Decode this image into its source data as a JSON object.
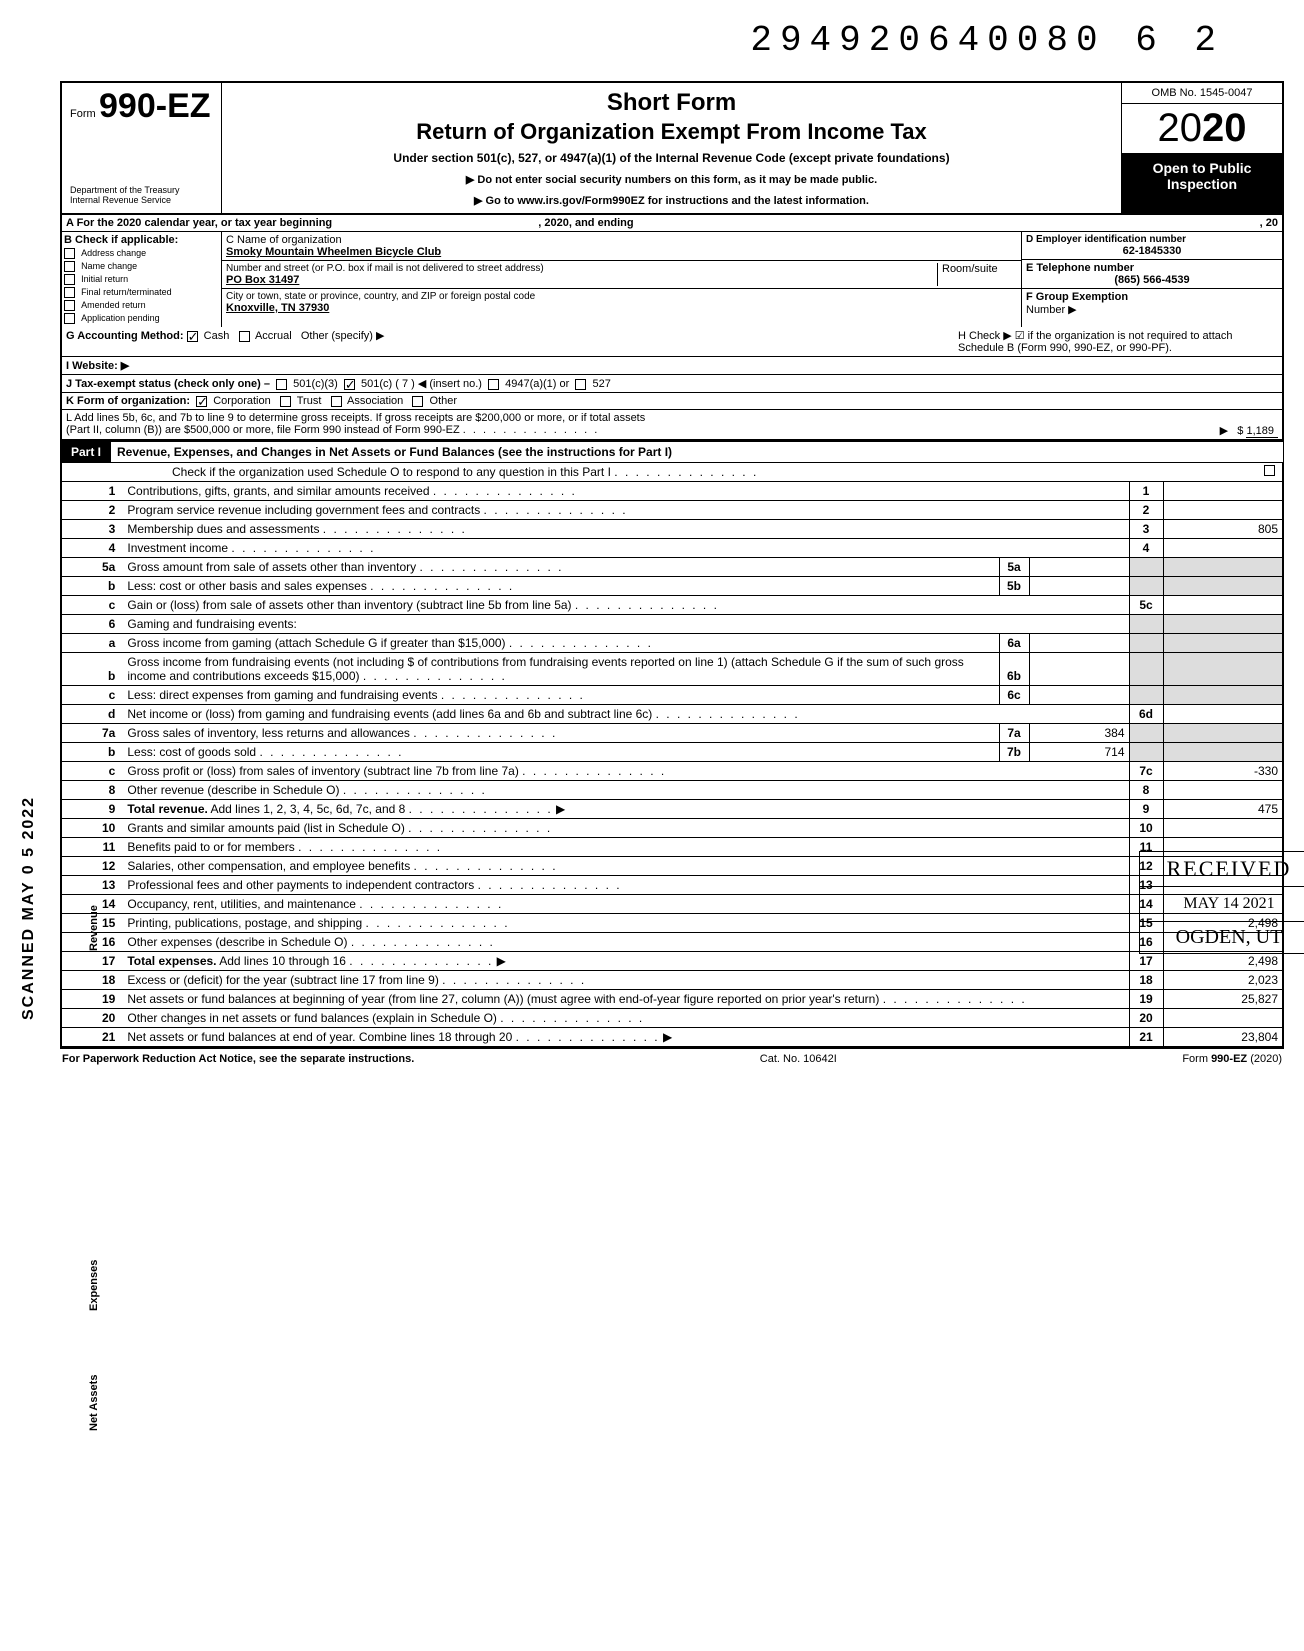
{
  "doc_id": "294920640080 6  2",
  "header": {
    "form_prefix": "Form",
    "form_number": "990-EZ",
    "dept": "Department of the Treasury\nInternal Revenue Service",
    "title1": "Short Form",
    "title2": "Return of Organization Exempt From Income Tax",
    "subtitle": "Under section 501(c), 527, or 4947(a)(1) of the Internal Revenue Code (except private foundations)",
    "arrow1": "▶ Do not enter social security numbers on this form, as it may be made public.",
    "arrow2": "▶ Go to www.irs.gov/Form990EZ for instructions and the latest information.",
    "omb": "OMB No. 1545-0047",
    "year_prefix": "20",
    "year_bold": "20",
    "open_public1": "Open to Public",
    "open_public2": "Inspection"
  },
  "row_a": {
    "left": "A  For the 2020 calendar year, or tax year beginning",
    "mid": ", 2020, and ending",
    "right": ", 20"
  },
  "col_b": {
    "label": "B  Check if applicable:",
    "items": [
      "Address change",
      "Name change",
      "Initial return",
      "Final return/terminated",
      "Amended return",
      "Application pending"
    ]
  },
  "col_c": {
    "name_label": "C  Name of organization",
    "org_name": "Smoky Mountain Wheelmen Bicycle Club",
    "street_label": "Number and street (or P.O. box if mail is not delivered to street address)",
    "room_label": "Room/suite",
    "street": "PO Box 31497",
    "city_label": "City or town, state or province, country, and ZIP or foreign postal code",
    "city": "Knoxville, TN 37930"
  },
  "col_de": {
    "ein_label": "D Employer identification number",
    "ein": "62-1845330",
    "phone_label": "E  Telephone number",
    "phone": "(865) 566-4539",
    "group_label": "F  Group Exemption",
    "group_label2": "Number ▶"
  },
  "row_g": {
    "label": "G  Accounting Method:",
    "cash": "Cash",
    "accrual": "Accrual",
    "other": "Other (specify) ▶",
    "h_text": "H  Check ▶ ☑ if the organization is not required to attach Schedule B (Form 990, 990-EZ, or 990-PF)."
  },
  "row_i": {
    "label": "I  Website: ▶"
  },
  "row_j": {
    "label": "J  Tax-exempt status (check only one) –",
    "opt1": "501(c)(3)",
    "opt2": "501(c) (  7  ) ◀ (insert no.)",
    "opt3": "4947(a)(1) or",
    "opt4": "527"
  },
  "row_k": {
    "label": "K  Form of organization:",
    "corp": "Corporation",
    "trust": "Trust",
    "assoc": "Association",
    "other": "Other"
  },
  "row_l": {
    "text1": "L  Add lines 5b, 6c, and 7b to line 9 to determine gross receipts. If gross receipts are $200,000 or more, or if total assets",
    "text2": "(Part II, column (B)) are $500,000 or more, file Form 990 instead of Form 990-EZ",
    "arrow": "▶",
    "dollar": "$",
    "amount": "1,189"
  },
  "part1": {
    "label": "Part I",
    "title": "Revenue, Expenses, and Changes in Net Assets or Fund Balances (see the instructions for Part I)",
    "check_o": "Check if the organization used Schedule O to respond to any question in this Part I"
  },
  "lines": [
    {
      "n": "1",
      "desc": "Contributions, gifts, grants, and similar amounts received",
      "box": "1",
      "val": ""
    },
    {
      "n": "2",
      "desc": "Program service revenue including government fees and contracts",
      "box": "2",
      "val": ""
    },
    {
      "n": "3",
      "desc": "Membership dues and assessments",
      "box": "3",
      "val": "805"
    },
    {
      "n": "4",
      "desc": "Investment income",
      "box": "4",
      "val": ""
    },
    {
      "n": "5a",
      "desc": "Gross amount from sale of assets other than inventory",
      "ibox": "5a",
      "ival": ""
    },
    {
      "n": "b",
      "desc": "Less: cost or other basis and sales expenses",
      "ibox": "5b",
      "ival": ""
    },
    {
      "n": "c",
      "desc": "Gain or (loss) from sale of assets other than inventory (subtract line 5b from line 5a)",
      "box": "5c",
      "val": ""
    },
    {
      "n": "6",
      "desc": "Gaming and fundraising events:",
      "noborder": true
    },
    {
      "n": "a",
      "desc": "Gross income from gaming (attach Schedule G if greater than $15,000)",
      "ibox": "6a",
      "ival": ""
    },
    {
      "n": "b",
      "desc": "Gross income from fundraising events (not including  $                       of contributions from fundraising events reported on line 1) (attach Schedule G if the sum of such gross income and contributions exceeds $15,000)",
      "ibox": "6b",
      "ival": ""
    },
    {
      "n": "c",
      "desc": "Less: direct expenses from gaming and fundraising events",
      "ibox": "6c",
      "ival": ""
    },
    {
      "n": "d",
      "desc": "Net income or (loss) from gaming and fundraising events (add lines 6a and 6b and subtract line 6c)",
      "box": "6d",
      "val": ""
    },
    {
      "n": "7a",
      "desc": "Gross sales of inventory, less returns and allowances",
      "ibox": "7a",
      "ival": "384"
    },
    {
      "n": "b",
      "desc": "Less: cost of goods sold",
      "ibox": "7b",
      "ival": "714"
    },
    {
      "n": "c",
      "desc": "Gross profit or (loss) from sales of inventory (subtract line 7b from line 7a)",
      "box": "7c",
      "val": "-330"
    },
    {
      "n": "8",
      "desc": "Other revenue (describe in Schedule O)",
      "box": "8",
      "val": ""
    },
    {
      "n": "9",
      "desc": "Total revenue. Add lines 1, 2, 3, 4, 5c, 6d, 7c, and 8",
      "box": "9",
      "val": "475",
      "arrow": true,
      "bold": true
    },
    {
      "n": "10",
      "desc": "Grants and similar amounts paid (list in Schedule O)",
      "box": "10",
      "val": ""
    },
    {
      "n": "11",
      "desc": "Benefits paid to or for members",
      "box": "11",
      "val": ""
    },
    {
      "n": "12",
      "desc": "Salaries, other compensation, and employee benefits",
      "box": "12",
      "val": ""
    },
    {
      "n": "13",
      "desc": "Professional fees and other payments to independent contractors",
      "box": "13",
      "val": ""
    },
    {
      "n": "14",
      "desc": "Occupancy, rent, utilities, and maintenance",
      "box": "14",
      "val": ""
    },
    {
      "n": "15",
      "desc": "Printing, publications, postage, and shipping",
      "box": "15",
      "val": "2,498"
    },
    {
      "n": "16",
      "desc": "Other expenses (describe in Schedule O)",
      "box": "16",
      "val": ""
    },
    {
      "n": "17",
      "desc": "Total expenses. Add lines 10 through 16",
      "box": "17",
      "val": "2,498",
      "arrow": true,
      "bold": true
    },
    {
      "n": "18",
      "desc": "Excess or (deficit) for the year (subtract line 17 from line 9)",
      "box": "18",
      "val": "2,023"
    },
    {
      "n": "19",
      "desc": "Net assets or fund balances at beginning of year (from line 27, column (A)) (must agree with end-of-year figure reported on prior year's return)",
      "box": "19",
      "val": "25,827"
    },
    {
      "n": "20",
      "desc": "Other changes in net assets or fund balances (explain in Schedule O)",
      "box": "20",
      "val": ""
    },
    {
      "n": "21",
      "desc": "Net assets or fund balances at end of year. Combine lines 18 through 20",
      "box": "21",
      "val": "23,804",
      "arrow": true
    }
  ],
  "side_labels": {
    "revenue": "Revenue",
    "expenses": "Expenses",
    "netassets": "Net Assets",
    "scanned": "SCANNED MAY 0 5 2022"
  },
  "stamp": {
    "r1": "RECEIVED",
    "r2": "MAY 14 2021",
    "r3": "OGDEN, UT"
  },
  "footer": {
    "left": "For Paperwork Reduction Act Notice, see the separate instructions.",
    "mid": "Cat. No. 10642I",
    "right": "Form 990-EZ (2020)"
  }
}
